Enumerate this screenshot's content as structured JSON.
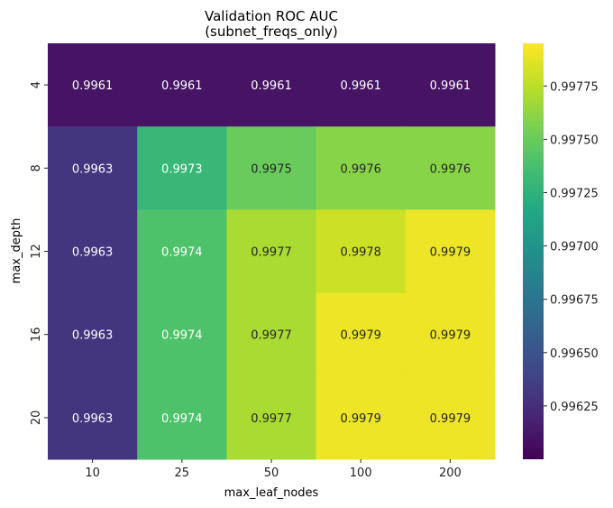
{
  "chart_data": {
    "type": "heatmap",
    "title": "Validation ROC AUC\n(subnet_freqs_only)",
    "title_lines": [
      "Validation ROC AUC",
      "(subnet_freqs_only)"
    ],
    "xlabel": "max_leaf_nodes",
    "ylabel": "max_depth",
    "x_categories": [
      "10",
      "25",
      "50",
      "100",
      "200"
    ],
    "y_categories": [
      "4",
      "8",
      "12",
      "16",
      "20"
    ],
    "values": [
      [
        0.9961,
        0.9961,
        0.9961,
        0.9961,
        0.9961
      ],
      [
        0.9963,
        0.9973,
        0.9975,
        0.9976,
        0.9976
      ],
      [
        0.9963,
        0.9974,
        0.9977,
        0.9978,
        0.9979
      ],
      [
        0.9963,
        0.9974,
        0.9977,
        0.9979,
        0.9979
      ],
      [
        0.9963,
        0.9974,
        0.9977,
        0.9979,
        0.9979
      ]
    ],
    "colormap": "viridis",
    "colorbar": {
      "range": [
        0.996,
        0.99795
      ],
      "ticks": [
        "0.99625",
        "0.99650",
        "0.99675",
        "0.99700",
        "0.99725",
        "0.99750",
        "0.99775"
      ]
    }
  }
}
